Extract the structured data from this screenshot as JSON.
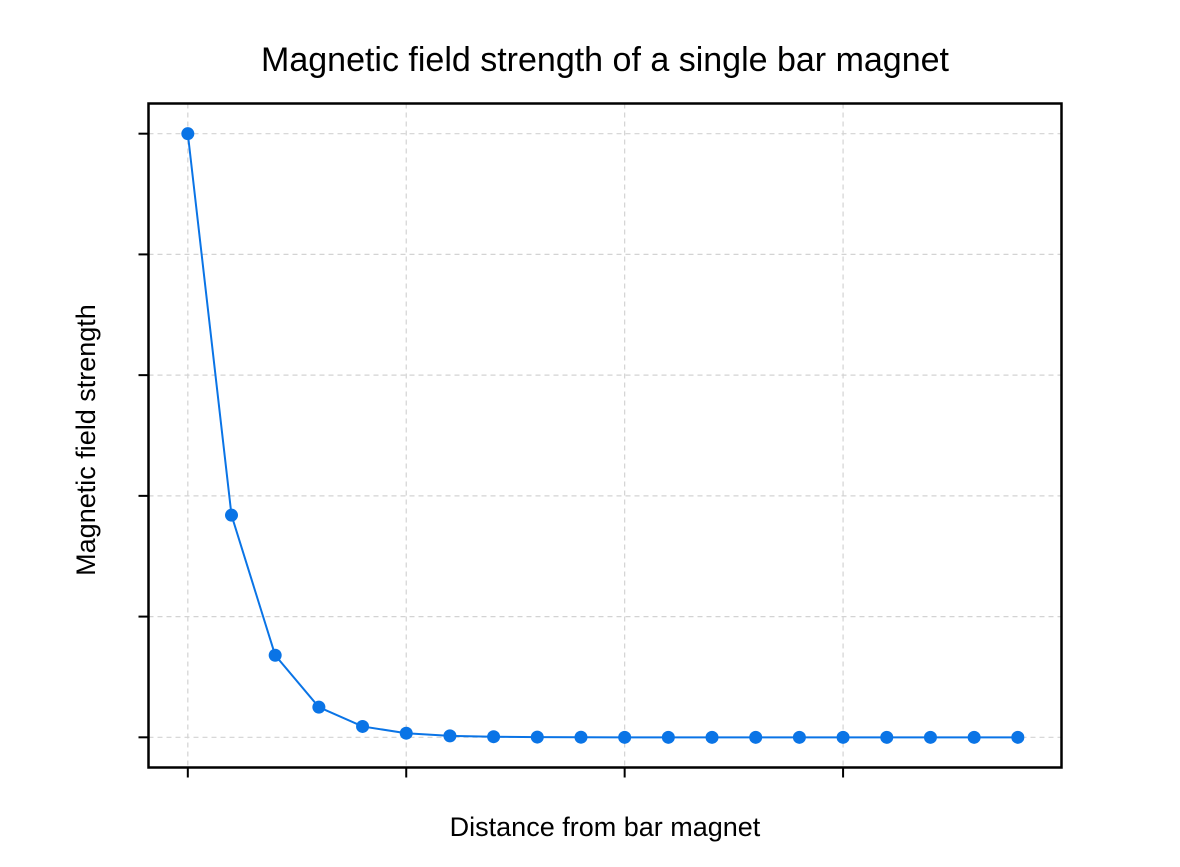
{
  "chart_data": {
    "type": "line",
    "title": "Magnetic field strength of a single bar magnet",
    "xlabel": "Distance from bar magnet",
    "ylabel": "Magnetic field strength",
    "x_tick_labels_visible": false,
    "y_tick_labels_visible": false,
    "grid": true,
    "legend": "none",
    "xlim": [
      -0.9,
      20
    ],
    "ylim": [
      -0.025,
      0.525
    ],
    "x_ticks": [
      0,
      5,
      10,
      15
    ],
    "y_ticks": [
      0,
      0.1,
      0.2,
      0.3,
      0.4,
      0.5
    ],
    "colors": {
      "series": "#0a74e6",
      "grid": "#d3d3d3",
      "frame": "#000000"
    },
    "series": [
      {
        "x": [
          0,
          1,
          2,
          3,
          4,
          5,
          6,
          7,
          8,
          9,
          10,
          11,
          12,
          13,
          14,
          15,
          16,
          17,
          18,
          19
        ],
        "values": [
          0.5,
          0.184,
          0.068,
          0.025,
          0.009,
          0.0034,
          0.0012,
          0.0005,
          0.0002,
          0.0001,
          0,
          0,
          0,
          0,
          0,
          0,
          0,
          0,
          0,
          0
        ],
        "marker": "circle"
      }
    ]
  }
}
